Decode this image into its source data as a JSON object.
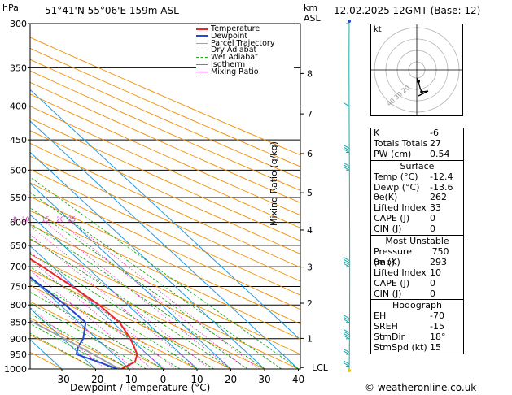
{
  "header": {
    "hpa_label": "hPa",
    "location": "51°41'N  55°06'E  159m  ASL",
    "km_label": "km",
    "asl_label": "ASL",
    "datetime": "12.02.2025  12GMT  (Base: 12)"
  },
  "chart_data": {
    "type": "line",
    "title": "51°41'N  55°06'E  159m  ASL",
    "xlabel": "Dewpoint / Temperature (°C)",
    "ylabel": "hPa",
    "xlim": [
      -35,
      40
    ],
    "ylim": [
      1000,
      300
    ],
    "y_log": true,
    "x_ticks": [
      -30,
      -20,
      -10,
      0,
      10,
      20,
      30,
      40
    ],
    "pressure_ticks": [
      300,
      350,
      400,
      450,
      500,
      550,
      600,
      650,
      700,
      750,
      800,
      850,
      900,
      950,
      1000
    ],
    "km_ticks": [
      {
        "label": "8",
        "p": 357
      },
      {
        "label": "7",
        "p": 411
      },
      {
        "label": "6",
        "p": 472
      },
      {
        "label": "5",
        "p": 541
      },
      {
        "label": "4",
        "p": 616
      },
      {
        "label": "3",
        "p": 701
      },
      {
        "label": "2",
        "p": 795
      },
      {
        "label": "1",
        "p": 899
      },
      {
        "label": "LCL",
        "p": 995
      }
    ],
    "mixing_ratio_label": "Mixing Ratio (g/kg)",
    "mixing_ratio_values": [
      "1",
      "2",
      "3",
      "4",
      "5",
      "8",
      "10",
      "15",
      "20",
      "25"
    ],
    "legend": [
      "Temperature",
      "Dewpoint",
      "Parcel Trajectory",
      "Dry Adiabat",
      "Wet Adiabat",
      "Isotherm",
      "Mixing Ratio"
    ],
    "series": [
      {
        "name": "Temperature",
        "points": [
          [
            1000,
            -12.4
          ],
          [
            975,
            -6
          ],
          [
            950,
            -3
          ],
          [
            925,
            -1.5
          ],
          [
            900,
            0
          ],
          [
            850,
            2
          ],
          [
            800,
            1.5
          ],
          [
            750,
            -0.5
          ],
          [
            700,
            -3
          ],
          [
            650,
            -6
          ],
          [
            600,
            -9.5
          ],
          [
            550,
            -13.5
          ],
          [
            500,
            -18.5
          ],
          [
            450,
            -24
          ],
          [
            400,
            -31
          ],
          [
            350,
            -38.5
          ],
          [
            300,
            -46
          ]
        ]
      },
      {
        "name": "Dewpoint",
        "points": [
          [
            1000,
            -13.6
          ],
          [
            975,
            -17
          ],
          [
            950,
            -21
          ],
          [
            925,
            -18
          ],
          [
            900,
            -14
          ],
          [
            850,
            -8
          ],
          [
            800,
            -8.5
          ],
          [
            750,
            -9.5
          ],
          [
            700,
            -10.5
          ],
          [
            650,
            -13
          ],
          [
            600,
            -16
          ],
          [
            550,
            -20.5
          ],
          [
            500,
            -25.5
          ],
          [
            450,
            -40
          ],
          [
            400,
            -47
          ],
          [
            350,
            -50
          ],
          [
            300,
            -57
          ]
        ]
      },
      {
        "name": "Parcel Trajectory",
        "points": [
          [
            1000,
            -12.4
          ],
          [
            990,
            -13.6
          ],
          [
            950,
            -16
          ],
          [
            900,
            -19.5
          ],
          [
            850,
            -23.5
          ],
          [
            800,
            -28
          ],
          [
            750,
            -32.5
          ],
          [
            700,
            -37.5
          ],
          [
            650,
            -43
          ],
          [
            600,
            -49
          ],
          [
            550,
            -55.5
          ],
          [
            500,
            -63
          ]
        ]
      }
    ]
  },
  "colors": {
    "temperature": "#e8262a",
    "dewpoint": "#2846d2",
    "parcel": "#a0a0a0",
    "dry_adiabat": "#f08c00",
    "wet_adiabat": "#19aa19",
    "isotherm": "#1e9be6",
    "mixing_ratio": "#e619b4",
    "wind_barb": "#1aa8a8"
  },
  "hodograph": {
    "label": "kt",
    "ring_labels": [
      "40",
      "30",
      "20"
    ]
  },
  "indices": [
    {
      "label": "K",
      "value": "-6"
    },
    {
      "label": "Totals Totals",
      "value": "27"
    },
    {
      "label": "PW (cm)",
      "value": "0.54"
    }
  ],
  "surface": {
    "title": "Surface",
    "rows": [
      {
        "label": "Temp (°C)",
        "value": "-12.4"
      },
      {
        "label": "Dewp (°C)",
        "value": "-13.6"
      },
      {
        "label": "θe(K)",
        "value": "262"
      },
      {
        "label": "Lifted Index",
        "value": "33"
      },
      {
        "label": "CAPE (J)",
        "value": "0"
      },
      {
        "label": "CIN (J)",
        "value": "0"
      }
    ]
  },
  "most_unstable": {
    "title": "Most Unstable",
    "rows": [
      {
        "label": "Pressure (mb)",
        "value": "750"
      },
      {
        "label": "θe (K)",
        "value": "293"
      },
      {
        "label": "Lifted Index",
        "value": "10"
      },
      {
        "label": "CAPE (J)",
        "value": "0"
      },
      {
        "label": "CIN (J)",
        "value": "0"
      }
    ]
  },
  "hodograph_table": {
    "title": "Hodograph",
    "rows": [
      {
        "label": "EH",
        "value": "-70"
      },
      {
        "label": "SREH",
        "value": "-15"
      },
      {
        "label": "StmDir",
        "value": "18°"
      },
      {
        "label": "StmSpd (kt)",
        "value": "15"
      }
    ]
  },
  "footer": "© weatheronline.co.uk"
}
